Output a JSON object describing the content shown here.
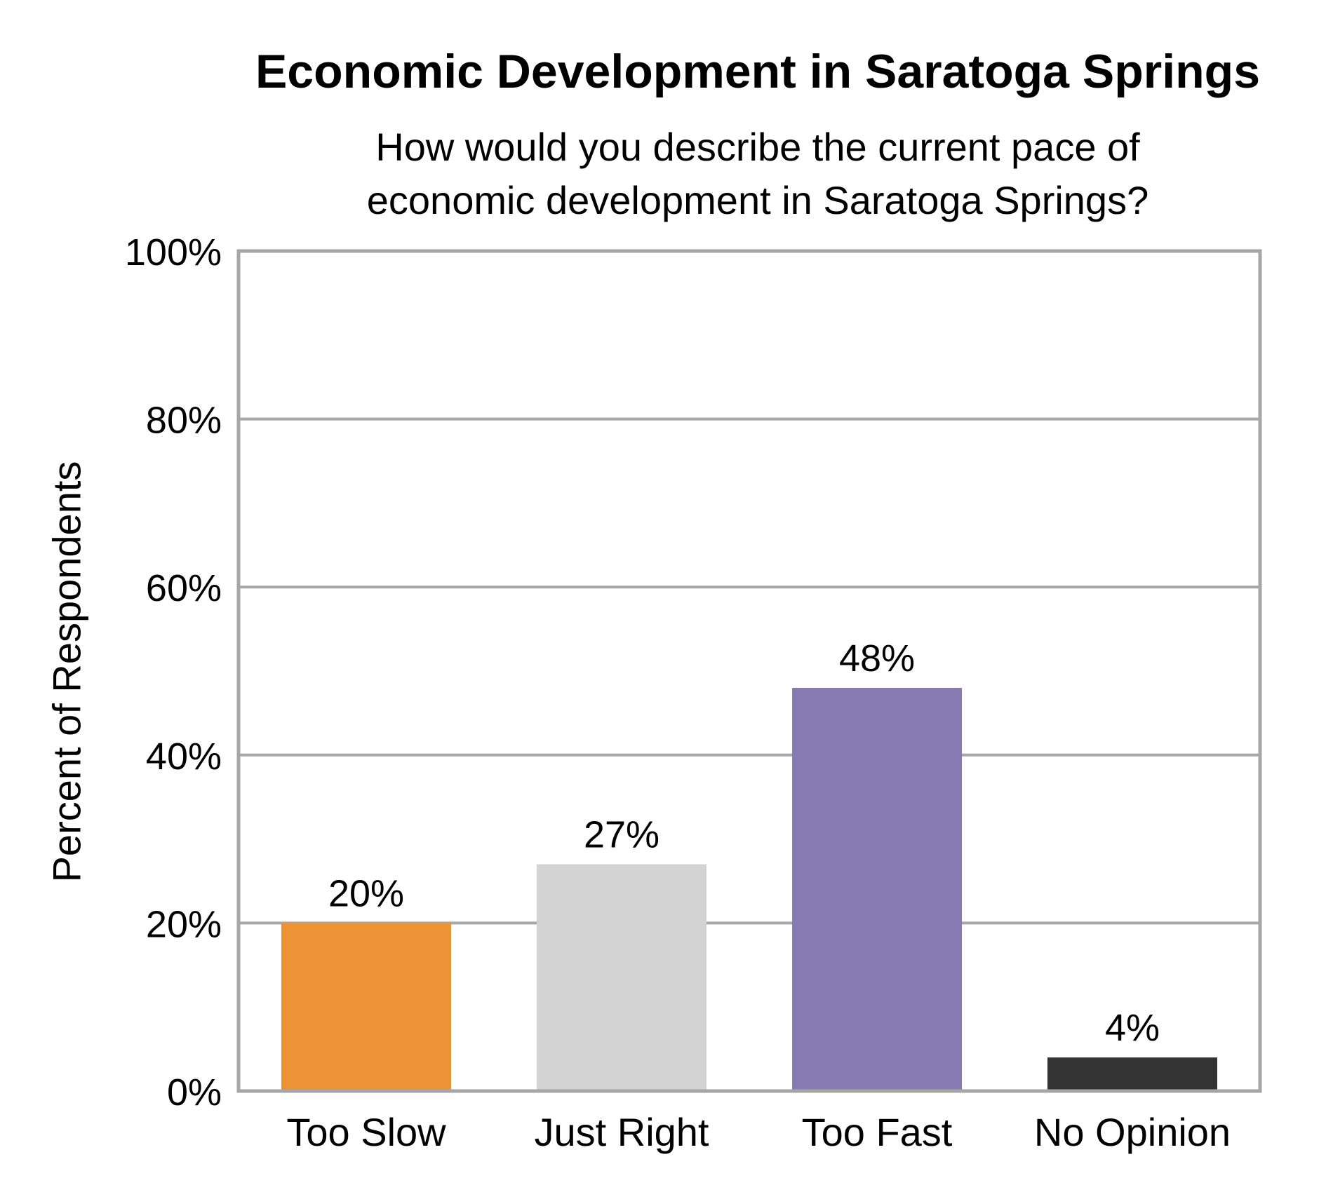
{
  "chart_data": {
    "type": "bar",
    "title": "Economic Development in Saratoga Springs",
    "subtitle": [
      "How would you describe the current pace of",
      "economic development in Saratoga Springs?"
    ],
    "xlabel": "",
    "ylabel": "Percent of Respondents",
    "ylim": [
      0,
      100
    ],
    "yticks": [
      0,
      20,
      40,
      60,
      80,
      100
    ],
    "ytick_labels": [
      "0%",
      "20%",
      "40%",
      "60%",
      "80%",
      "100%"
    ],
    "categories": [
      "Too Slow",
      "Just Right",
      "Too Fast",
      "No Opinion"
    ],
    "values": [
      20,
      27,
      48,
      4
    ],
    "data_labels": [
      "20%",
      "27%",
      "48%",
      "4%"
    ],
    "colors": [
      "#EC9335",
      "#D3D3D3",
      "#877BB4",
      "#333333"
    ],
    "grid": true,
    "legend": "none"
  }
}
